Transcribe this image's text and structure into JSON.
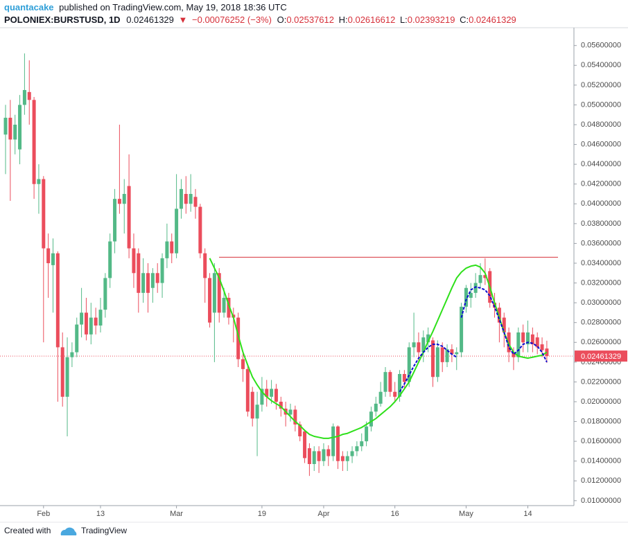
{
  "chart_data": {
    "type": "candlestick",
    "header": {
      "author": "quantacake",
      "published": "published on TradingView.com, May 19, 2018 18:36 UTC",
      "symbol": "POLONIEX:BURSTUSD, 1D",
      "price": "0.02461329",
      "arrow": "▼",
      "change": "−0.00076252 (−3%)",
      "o_label": "O:",
      "o_value": "0.02537612",
      "h_label": "H:",
      "h_value": "0.02616612",
      "l_label": "L:",
      "l_value": "0.02393219",
      "c_label": "C:",
      "c_value": "0.02461329"
    },
    "categories": [
      null,
      null,
      null,
      null,
      null,
      null,
      null,
      null,
      "Feb",
      null,
      null,
      null,
      null,
      null,
      null,
      null,
      null,
      null,
      null,
      null,
      "13",
      null,
      null,
      null,
      null,
      null,
      null,
      null,
      null,
      null,
      null,
      null,
      null,
      null,
      null,
      null,
      "Mar",
      null,
      null,
      null,
      null,
      null,
      null,
      null,
      null,
      null,
      null,
      null,
      null,
      null,
      null,
      null,
      null,
      null,
      "19",
      null,
      null,
      null,
      null,
      null,
      null,
      null,
      null,
      null,
      null,
      null,
      null,
      "Apr",
      null,
      null,
      null,
      null,
      null,
      null,
      null,
      null,
      null,
      null,
      null,
      null,
      null,
      null,
      "16",
      null,
      null,
      null,
      null,
      null,
      null,
      null,
      null,
      null,
      null,
      null,
      null,
      null,
      null,
      "May",
      null,
      null,
      null,
      null,
      null,
      null,
      null,
      null,
      null,
      null,
      null,
      null,
      "14",
      null,
      null,
      null,
      null
    ],
    "open": [
      0.047,
      0.0487,
      0.0465,
      0.0455,
      0.05,
      0.0513,
      0.0505,
      0.042,
      0.0425,
      0.0355,
      0.0338,
      0.035,
      0.0255,
      0.0205,
      0.0245,
      0.025,
      0.0278,
      0.029,
      0.0268,
      0.0285,
      0.0277,
      0.0293,
      0.0325,
      0.0362,
      0.0405,
      0.04,
      0.0418,
      0.0355,
      0.035,
      0.031,
      0.033,
      0.0315,
      0.033,
      0.032,
      0.0345,
      0.0362,
      0.035,
      0.0395,
      0.041,
      0.04,
      0.0407,
      0.0397,
      0.035,
      0.0325,
      0.029,
      0.033,
      0.029,
      0.0305,
      0.0288,
      0.0285,
      0.0243,
      0.0233,
      0.021,
      0.0183,
      0.0197,
      0.0213,
      0.0205,
      0.0213,
      0.02,
      0.0193,
      0.0187,
      0.0192,
      0.0177,
      0.017,
      0.0153,
      0.0137,
      0.015,
      0.014,
      0.0152,
      0.0145,
      0.0175,
      0.0145,
      0.014,
      0.0145,
      0.015,
      0.0155,
      0.016,
      0.0175,
      0.019,
      0.0198,
      0.021,
      0.023,
      0.021,
      0.0205,
      0.0228,
      0.022,
      0.0255,
      0.026,
      0.025,
      0.026,
      0.0262,
      0.0225,
      0.0255,
      0.024,
      0.0253,
      0.0248,
      0.025,
      0.0296,
      0.0305,
      0.031,
      0.032,
      0.0328,
      0.0332,
      0.03,
      0.0295,
      0.0285,
      0.027,
      0.025,
      0.0245,
      0.027,
      0.0258,
      0.0268,
      0.0265,
      0.0258,
      0.02537612
    ],
    "high": [
      0.05,
      0.0505,
      0.049,
      0.051,
      0.0552,
      0.0545,
      0.0508,
      0.044,
      0.0428,
      0.037,
      0.0365,
      0.0352,
      0.027,
      0.0265,
      0.026,
      0.0285,
      0.0315,
      0.0305,
      0.03,
      0.0295,
      0.0305,
      0.033,
      0.037,
      0.0415,
      0.048,
      0.0425,
      0.045,
      0.037,
      0.0355,
      0.0345,
      0.034,
      0.0335,
      0.034,
      0.035,
      0.038,
      0.037,
      0.043,
      0.0425,
      0.0428,
      0.043,
      0.0415,
      0.04,
      0.0355,
      0.033,
      0.034,
      0.0335,
      0.0315,
      0.031,
      0.0295,
      0.029,
      0.025,
      0.0238,
      0.0215,
      0.021,
      0.0225,
      0.0222,
      0.0222,
      0.0218,
      0.0205,
      0.02,
      0.0198,
      0.0196,
      0.018,
      0.0172,
      0.0158,
      0.0155,
      0.0155,
      0.0158,
      0.0156,
      0.0178,
      0.0176,
      0.015,
      0.015,
      0.0155,
      0.016,
      0.0168,
      0.018,
      0.0195,
      0.0205,
      0.022,
      0.0235,
      0.0232,
      0.022,
      0.0232,
      0.0232,
      0.026,
      0.029,
      0.027,
      0.0272,
      0.0275,
      0.0265,
      0.0262,
      0.026,
      0.0258,
      0.0258,
      0.0255,
      0.03,
      0.0318,
      0.032,
      0.033,
      0.034,
      0.0345,
      0.0335,
      0.031,
      0.03,
      0.029,
      0.0275,
      0.0255,
      0.0275,
      0.0278,
      0.0282,
      0.0275,
      0.027,
      0.0265,
      0.02616612
    ],
    "low": [
      0.043,
      0.0403,
      0.045,
      0.044,
      0.049,
      0.048,
      0.0405,
      0.039,
      0.026,
      0.0305,
      0.029,
      0.02,
      0.0195,
      0.0165,
      0.0235,
      0.0245,
      0.0265,
      0.0262,
      0.0258,
      0.0268,
      0.027,
      0.0285,
      0.0315,
      0.035,
      0.039,
      0.037,
      0.0345,
      0.0315,
      0.029,
      0.03,
      0.029,
      0.03,
      0.031,
      0.0305,
      0.0335,
      0.034,
      0.0345,
      0.0385,
      0.039,
      0.0392,
      0.0385,
      0.0345,
      0.03,
      0.0275,
      0.024,
      0.028,
      0.0285,
      0.0278,
      0.026,
      0.0235,
      0.022,
      0.0185,
      0.0175,
      0.0145,
      0.019,
      0.0195,
      0.0198,
      0.0192,
      0.0185,
      0.0175,
      0.018,
      0.017,
      0.016,
      0.0138,
      0.0125,
      0.013,
      0.0128,
      0.0135,
      0.0135,
      0.014,
      0.0132,
      0.013,
      0.013,
      0.0138,
      0.0145,
      0.015,
      0.0155,
      0.017,
      0.0185,
      0.0195,
      0.0205,
      0.0205,
      0.02,
      0.02,
      0.0212,
      0.0215,
      0.0245,
      0.024,
      0.024,
      0.025,
      0.0215,
      0.022,
      0.023,
      0.0235,
      0.024,
      0.0232,
      0.0245,
      0.029,
      0.0295,
      0.0305,
      0.0315,
      0.0318,
      0.0295,
      0.0285,
      0.026,
      0.0255,
      0.024,
      0.0232,
      0.024,
      0.025,
      0.025,
      0.025,
      0.0248,
      0.0245,
      0.02393219
    ],
    "close": [
      0.0487,
      0.0465,
      0.048,
      0.05,
      0.0515,
      0.0505,
      0.042,
      0.0425,
      0.0355,
      0.034,
      0.035,
      0.0255,
      0.0205,
      0.0245,
      0.025,
      0.0278,
      0.029,
      0.0268,
      0.0285,
      0.0277,
      0.0293,
      0.0325,
      0.0362,
      0.0405,
      0.04,
      0.041,
      0.0355,
      0.033,
      0.031,
      0.033,
      0.031,
      0.033,
      0.032,
      0.0345,
      0.0362,
      0.035,
      0.0395,
      0.0415,
      0.04,
      0.041,
      0.0397,
      0.035,
      0.0325,
      0.028,
      0.033,
      0.029,
      0.0305,
      0.0285,
      0.0285,
      0.0243,
      0.0233,
      0.019,
      0.0183,
      0.0197,
      0.0213,
      0.0205,
      0.0213,
      0.02,
      0.0193,
      0.0187,
      0.0192,
      0.0177,
      0.0165,
      0.0143,
      0.0137,
      0.015,
      0.014,
      0.0152,
      0.0145,
      0.0175,
      0.014,
      0.014,
      0.0145,
      0.015,
      0.0155,
      0.016,
      0.0175,
      0.019,
      0.0198,
      0.021,
      0.023,
      0.021,
      0.0205,
      0.0228,
      0.022,
      0.0255,
      0.026,
      0.025,
      0.0265,
      0.0268,
      0.0225,
      0.0255,
      0.024,
      0.0253,
      0.0248,
      0.025,
      0.0296,
      0.0315,
      0.031,
      0.032,
      0.0328,
      0.0325,
      0.03,
      0.0295,
      0.028,
      0.027,
      0.025,
      0.0245,
      0.027,
      0.026,
      0.027,
      0.0258,
      0.0255,
      0.0252,
      0.02461329
    ],
    "up_color": "#53b987",
    "down_color": "#eb4d5c",
    "series": [
      {
        "color": "#2ee01a",
        "style": "solid",
        "values": [
          null,
          null,
          null,
          null,
          null,
          null,
          null,
          null,
          null,
          null,
          null,
          null,
          null,
          null,
          null,
          null,
          null,
          null,
          null,
          null,
          null,
          null,
          null,
          null,
          null,
          null,
          null,
          null,
          null,
          null,
          null,
          null,
          null,
          null,
          null,
          null,
          null,
          null,
          null,
          null,
          null,
          null,
          null,
          0.0345,
          0.0335,
          0.0325,
          0.0312,
          0.0298,
          0.0285,
          0.0267,
          0.025,
          0.0237,
          0.0225,
          0.0217,
          0.021,
          0.0205,
          0.0201,
          0.0198,
          0.0195,
          0.019,
          0.0185,
          0.018,
          0.0176,
          0.0171,
          0.0167,
          0.0165,
          0.0164,
          0.0163,
          0.0163,
          0.0164,
          0.0165,
          0.0167,
          0.0168,
          0.017,
          0.0172,
          0.0174,
          0.0177,
          0.018,
          0.0183,
          0.0187,
          0.0191,
          0.0195,
          0.02,
          0.0206,
          0.0213,
          0.022,
          0.023,
          0.024,
          0.025,
          0.0261,
          0.0271,
          0.0282,
          0.0293,
          0.0304,
          0.0315,
          0.0325,
          0.0331,
          0.0335,
          0.0337,
          0.0338,
          0.0336,
          0.033,
          0.0316,
          0.03,
          0.0285,
          0.027,
          0.0258,
          0.025,
          0.0246,
          0.0245,
          0.0244,
          0.0245,
          0.0246,
          0.0247,
          0.025
        ]
      },
      {
        "color": "#0a0ad0",
        "style": "dashed",
        "values": [
          null,
          null,
          null,
          null,
          null,
          null,
          null,
          null,
          null,
          null,
          null,
          null,
          null,
          null,
          null,
          null,
          null,
          null,
          null,
          null,
          null,
          null,
          null,
          null,
          null,
          null,
          null,
          null,
          null,
          null,
          null,
          null,
          null,
          null,
          null,
          null,
          null,
          null,
          null,
          null,
          null,
          null,
          null,
          null,
          null,
          null,
          null,
          null,
          null,
          null,
          null,
          null,
          null,
          null,
          null,
          null,
          null,
          null,
          null,
          null,
          null,
          null,
          null,
          null,
          null,
          null,
          null,
          null,
          null,
          null,
          null,
          null,
          null,
          null,
          null,
          null,
          null,
          null,
          null,
          null,
          null,
          null,
          null,
          0.021,
          0.0218,
          0.0227,
          0.0236,
          0.0244,
          0.025,
          0.0255,
          0.0258,
          0.0258,
          0.0256,
          0.0252,
          0.0248,
          0.0245,
          null,
          null,
          null,
          null,
          null,
          null,
          null,
          null,
          null,
          null,
          null,
          null,
          null,
          null,
          null,
          null,
          null,
          null,
          null
        ]
      },
      {
        "color": "#0a0ad0",
        "style": "dashed",
        "values": [
          null,
          null,
          null,
          null,
          null,
          null,
          null,
          null,
          null,
          null,
          null,
          null,
          null,
          null,
          null,
          null,
          null,
          null,
          null,
          null,
          null,
          null,
          null,
          null,
          null,
          null,
          null,
          null,
          null,
          null,
          null,
          null,
          null,
          null,
          null,
          null,
          null,
          null,
          null,
          null,
          null,
          null,
          null,
          null,
          null,
          null,
          null,
          null,
          null,
          null,
          null,
          null,
          null,
          null,
          null,
          null,
          null,
          null,
          null,
          null,
          null,
          null,
          null,
          null,
          null,
          null,
          null,
          null,
          null,
          null,
          null,
          null,
          null,
          null,
          null,
          null,
          null,
          null,
          null,
          null,
          null,
          null,
          null,
          null,
          null,
          null,
          null,
          null,
          null,
          null,
          null,
          null,
          null,
          null,
          null,
          null,
          0.0285,
          0.0303,
          0.0313,
          0.0316,
          0.0315,
          0.0313,
          0.0307,
          0.0296,
          0.0283,
          0.027,
          0.0255,
          0.0248,
          0.0252,
          0.0258,
          0.026,
          0.0259,
          0.0256,
          0.025,
          0.024
        ]
      }
    ],
    "hlines": [
      {
        "value": 0.0346,
        "color": "#d6303a"
      }
    ],
    "last_price": {
      "value": 0.02461329,
      "label": "0.02461329",
      "color": "#eb4d5c"
    },
    "ylim": [
      0.0095,
      0.0578
    ],
    "yticks": [
      {
        "value": 0.01,
        "label": "0.01000000"
      },
      {
        "value": 0.012,
        "label": "0.01200000"
      },
      {
        "value": 0.014,
        "label": "0.01400000"
      },
      {
        "value": 0.016,
        "label": "0.01600000"
      },
      {
        "value": 0.018,
        "label": "0.01800000"
      },
      {
        "value": 0.02,
        "label": "0.02000000"
      },
      {
        "value": 0.022,
        "label": "0.02200000"
      },
      {
        "value": 0.024,
        "label": "0.02400000"
      },
      {
        "value": 0.026,
        "label": "0.02600000"
      },
      {
        "value": 0.028,
        "label": "0.02800000"
      },
      {
        "value": 0.03,
        "label": "0.03000000"
      },
      {
        "value": 0.032,
        "label": "0.03200000"
      },
      {
        "value": 0.034,
        "label": "0.03400000"
      },
      {
        "value": 0.036,
        "label": "0.03600000"
      },
      {
        "value": 0.038,
        "label": "0.03800000"
      },
      {
        "value": 0.04,
        "label": "0.04000000"
      },
      {
        "value": 0.042,
        "label": "0.04200000"
      },
      {
        "value": 0.044,
        "label": "0.04400000"
      },
      {
        "value": 0.046,
        "label": "0.04600000"
      },
      {
        "value": 0.048,
        "label": "0.04800000"
      },
      {
        "value": 0.05,
        "label": "0.05000000"
      },
      {
        "value": 0.052,
        "label": "0.05200000"
      },
      {
        "value": 0.054,
        "label": "0.05400000"
      },
      {
        "value": 0.056,
        "label": "0.05600000"
      }
    ],
    "grid": false
  },
  "footer": {
    "created": "Created with",
    "brand": "TradingView"
  }
}
